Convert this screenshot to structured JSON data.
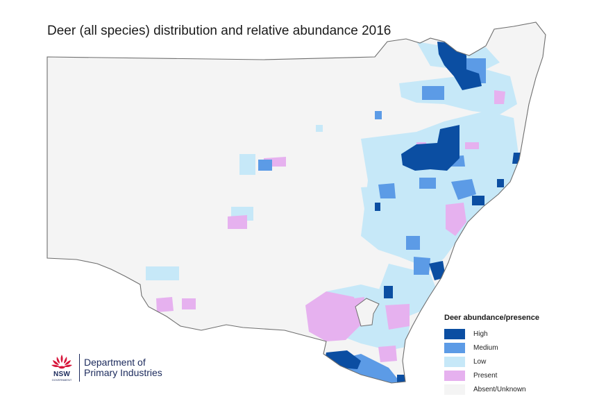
{
  "title": "Deer (all species) distribution and relative abundance 2016",
  "legend": {
    "title": "Deer abundance/presence",
    "items": [
      {
        "label": "High",
        "color": "#0b4ea2"
      },
      {
        "label": "Medium",
        "color": "#5c9be6"
      },
      {
        "label": "Low",
        "color": "#c6e8f8"
      },
      {
        "label": "Present",
        "color": "#e6b1ef"
      },
      {
        "label": "Absent/Unknown",
        "color": "#f4f4f4"
      }
    ]
  },
  "map": {
    "region": "New South Wales",
    "base_color": "#f4f4f4",
    "outline_color": "#6e6e6e"
  },
  "logo": {
    "badge": "NSW",
    "badge_sub": "GOVERNMENT",
    "department_line1": "Department of",
    "department_line2": "Primary Industries",
    "brand_color": "#1b2a5c",
    "accent_color": "#d7153a"
  }
}
